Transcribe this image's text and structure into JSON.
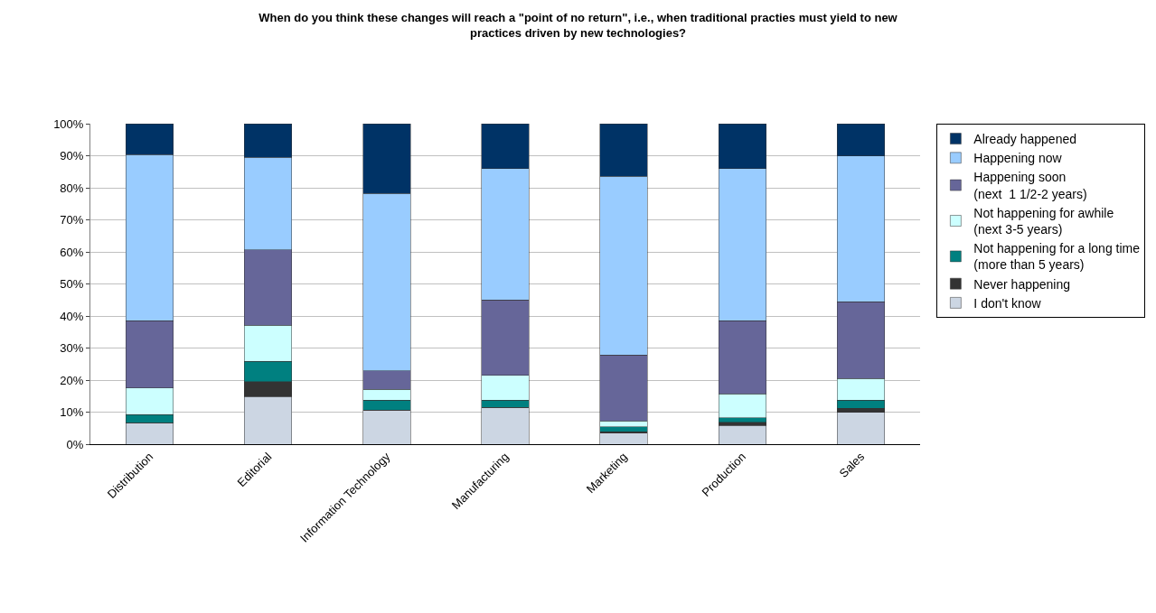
{
  "chart_data": {
    "type": "bar",
    "stacked": true,
    "title": "When do you think these changes will reach a \"point of no return\", i.e., when traditional practies must yield to new\npractices driven by new technologies?",
    "categories": [
      "Distribution",
      "Editorial",
      "Information Technology",
      "Manufacturing",
      "Marketing",
      "Production",
      "Sales"
    ],
    "series": [
      {
        "name": "I don't know",
        "color": "#ccd6e3",
        "values": [
          6.7,
          14.9,
          10.6,
          11.5,
          3.4,
          5.9,
          10.0
        ]
      },
      {
        "name": "Never happening",
        "color": "#333333",
        "values": [
          0,
          4.6,
          0,
          0,
          0.5,
          1.0,
          1.2
        ]
      },
      {
        "name": "Not happening for a long time\n(more than 5 years)",
        "color": "#008080",
        "values": [
          2.5,
          6.3,
          3.1,
          2.2,
          1.5,
          1.4,
          2.5
        ]
      },
      {
        "name": "Not happening for awhile\n(next 3-5 years)",
        "color": "#ccffff",
        "values": [
          8.3,
          11.3,
          3.4,
          7.8,
          1.8,
          7.4,
          6.8
        ]
      },
      {
        "name": "Happening soon\n(next  1 1/2-2 years)",
        "color": "#666699",
        "values": [
          21.0,
          23.6,
          5.8,
          23.5,
          20.6,
          22.8,
          24.0
        ]
      },
      {
        "name": "Happening now",
        "color": "#99ccff",
        "values": [
          51.9,
          28.8,
          55.3,
          41.0,
          55.8,
          47.5,
          45.5
        ]
      },
      {
        "name": "Already happened",
        "color": "#003366",
        "values": [
          9.6,
          10.5,
          21.8,
          14.0,
          16.4,
          14.0,
          10.0
        ]
      }
    ],
    "ylim": [
      0,
      100
    ],
    "yticks": [
      {
        "value": 0,
        "label": "0%"
      },
      {
        "value": 10,
        "label": "10%"
      },
      {
        "value": 20,
        "label": "20%"
      },
      {
        "value": 30,
        "label": "30%"
      },
      {
        "value": 40,
        "label": "40%"
      },
      {
        "value": 50,
        "label": "50%"
      },
      {
        "value": 60,
        "label": "60%"
      },
      {
        "value": 70,
        "label": "70%"
      },
      {
        "value": 80,
        "label": "80%"
      },
      {
        "value": 90,
        "label": "90%"
      },
      {
        "value": 100,
        "label": "100%"
      }
    ],
    "grid": "y",
    "legend": "right"
  }
}
